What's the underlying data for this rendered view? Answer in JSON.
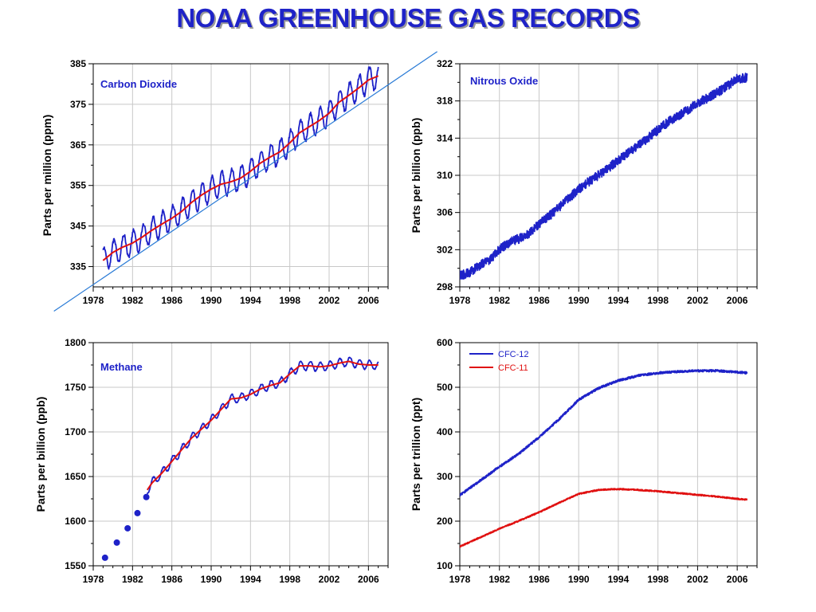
{
  "page": {
    "title": "NOAA GREENHOUSE GAS RECORDS"
  },
  "chart_data": [
    {
      "id": "co2",
      "type": "line",
      "title": "Carbon Dioxide",
      "xlabel": "",
      "ylabel": "Parts per million (ppm)",
      "xlim": [
        1978,
        2008
      ],
      "ylim": [
        330,
        385
      ],
      "xticks": [
        1978,
        1982,
        1986,
        1990,
        1994,
        1998,
        2002,
        2006
      ],
      "yticks": [
        335,
        345,
        355,
        365,
        375,
        385
      ],
      "grid": true,
      "legend": "none",
      "series": [
        {
          "kind": "monthly",
          "color": "#1e22c8",
          "seasonal_amplitude": 3,
          "x": [
            1979.0,
            1980.0,
            1981.0,
            1982.0,
            1983.0,
            1984.0,
            1985.0,
            1986.0,
            1987.0,
            1988.0,
            1989.0,
            1990.0,
            1991.0,
            1992.0,
            1993.0,
            1994.0,
            1995.0,
            1996.0,
            1997.0,
            1998.0,
            1999.0,
            2000.0,
            2001.0,
            2002.0,
            2003.0,
            2004.0,
            2005.0,
            2006.0,
            2007.0
          ],
          "y": [
            336.5,
            338.5,
            339.8,
            340.8,
            342.3,
            344.0,
            345.5,
            346.9,
            348.6,
            350.8,
            352.6,
            354.1,
            355.3,
            355.9,
            356.8,
            358.5,
            360.5,
            362.0,
            363.3,
            365.5,
            368.0,
            369.5,
            371.0,
            372.8,
            375.5,
            377.2,
            379.0,
            381.0,
            382.0
          ]
        },
        {
          "kind": "smooth",
          "color": "#e01010",
          "x": [
            1979.0,
            1980.0,
            1981.0,
            1982.0,
            1983.0,
            1984.0,
            1985.0,
            1986.0,
            1987.0,
            1988.0,
            1989.0,
            1990.0,
            1991.0,
            1992.0,
            1993.0,
            1994.0,
            1995.0,
            1996.0,
            1997.0,
            1998.0,
            1999.0,
            2000.0,
            2001.0,
            2002.0,
            2003.0,
            2004.0,
            2005.0,
            2006.0,
            2007.0
          ],
          "y": [
            336.5,
            338.5,
            339.8,
            340.8,
            342.3,
            344.0,
            345.5,
            346.9,
            348.6,
            350.8,
            352.6,
            354.1,
            355.3,
            355.9,
            356.8,
            358.5,
            360.5,
            362.0,
            363.3,
            365.5,
            368.0,
            369.5,
            371.0,
            372.8,
            375.5,
            377.2,
            379.0,
            381.0,
            382.0
          ]
        },
        {
          "kind": "trend",
          "color": "#2a7bd6",
          "x": [
            1974.0,
            2013.0
          ],
          "y": [
            324.0,
            388.0
          ]
        }
      ]
    },
    {
      "id": "n2o",
      "type": "line",
      "title": "Nitrous Oxide",
      "xlabel": "",
      "ylabel": "Parts per billion (ppb)",
      "xlim": [
        1978,
        2008
      ],
      "ylim": [
        298,
        322
      ],
      "xticks": [
        1978,
        1982,
        1986,
        1990,
        1994,
        1998,
        2002,
        2006
      ],
      "yticks": [
        298,
        302,
        306,
        310,
        314,
        318,
        322
      ],
      "grid": true,
      "legend": "none",
      "series": [
        {
          "kind": "noisy",
          "color": "#1e22c8",
          "noise": 0.5,
          "x": [
            1978.0,
            1979.0,
            1980.0,
            1981.0,
            1982.0,
            1983.0,
            1984.0,
            1985.0,
            1986.0,
            1987.0,
            1988.0,
            1989.0,
            1990.0,
            1991.0,
            1992.0,
            1993.0,
            1994.0,
            1995.0,
            1996.0,
            1997.0,
            1998.0,
            1999.0,
            2000.0,
            2001.0,
            2002.0,
            2003.0,
            2004.0,
            2005.0,
            2006.0,
            2007.0
          ],
          "y": [
            299.2,
            299.5,
            300.3,
            300.9,
            302.0,
            302.8,
            303.2,
            303.7,
            304.8,
            305.6,
            306.5,
            307.5,
            308.5,
            309.3,
            310.0,
            310.8,
            311.6,
            312.5,
            313.2,
            314.0,
            314.9,
            315.7,
            316.4,
            317.0,
            317.8,
            318.3,
            318.9,
            319.6,
            320.4,
            320.5
          ]
        }
      ]
    },
    {
      "id": "ch4",
      "type": "line",
      "title": "Methane",
      "xlabel": "",
      "ylabel": "Parts per billion (ppb)",
      "xlim": [
        1978,
        2008
      ],
      "ylim": [
        1550,
        1800
      ],
      "xticks": [
        1978,
        1982,
        1986,
        1990,
        1994,
        1998,
        2002,
        2006
      ],
      "yticks": [
        1550,
        1600,
        1650,
        1700,
        1750,
        1800
      ],
      "grid": true,
      "legend": "none",
      "series": [
        {
          "kind": "points",
          "color": "#1e22c8",
          "x": [
            1979.2,
            1980.4,
            1981.5,
            1982.5,
            1983.4
          ],
          "y": [
            1559,
            1576,
            1592,
            1609,
            1627
          ]
        },
        {
          "kind": "monthly",
          "color": "#1e22c8",
          "seasonal_amplitude": 5,
          "x": [
            1983.5,
            1984.0,
            1985.0,
            1986.0,
            1987.0,
            1988.0,
            1989.0,
            1990.0,
            1991.0,
            1992.0,
            1993.0,
            1994.0,
            1995.0,
            1996.0,
            1997.0,
            1998.0,
            1999.0,
            2000.0,
            2001.0,
            2002.0,
            2003.0,
            2004.0,
            2005.0,
            2006.0,
            2007.0
          ],
          "y": [
            1635,
            1643,
            1654,
            1667,
            1680,
            1693,
            1703,
            1713,
            1725,
            1737,
            1738,
            1742,
            1748,
            1752,
            1755,
            1765,
            1774,
            1774,
            1773,
            1774,
            1777,
            1779,
            1776,
            1775,
            1775
          ]
        },
        {
          "kind": "smooth",
          "color": "#e01010",
          "x": [
            1983.5,
            1984.0,
            1985.0,
            1986.0,
            1987.0,
            1988.0,
            1989.0,
            1990.0,
            1991.0,
            1992.0,
            1993.0,
            1994.0,
            1995.0,
            1996.0,
            1997.0,
            1998.0,
            1999.0,
            2000.0,
            2001.0,
            2002.0,
            2003.0,
            2004.0,
            2005.0,
            2006.0,
            2007.0
          ],
          "y": [
            1635,
            1643,
            1654,
            1667,
            1680,
            1693,
            1703,
            1713,
            1725,
            1737,
            1738,
            1742,
            1748,
            1752,
            1755,
            1765,
            1774,
            1774,
            1773,
            1774,
            1777,
            1779,
            1776,
            1775,
            1775
          ]
        }
      ]
    },
    {
      "id": "cfc",
      "type": "line",
      "title": "",
      "xlabel": "",
      "ylabel": "Parts per trillion (ppt)",
      "xlim": [
        1978,
        2008
      ],
      "ylim": [
        100,
        600
      ],
      "xticks": [
        1978,
        1982,
        1986,
        1990,
        1994,
        1998,
        2002,
        2006
      ],
      "yticks": [
        100,
        200,
        300,
        400,
        500,
        600
      ],
      "grid": true,
      "legend": "top-left",
      "series": [
        {
          "name": "CFC-12",
          "kind": "noisy",
          "color": "#1e22c8",
          "noise": 2.5,
          "x": [
            1978.0,
            1980.0,
            1982.0,
            1984.0,
            1986.0,
            1988.0,
            1990.0,
            1992.0,
            1994.0,
            1996.0,
            1998.0,
            2000.0,
            2002.0,
            2004.0,
            2006.0,
            2007.0
          ],
          "y": [
            258,
            290,
            322,
            352,
            388,
            428,
            472,
            498,
            515,
            526,
            532,
            535,
            537,
            537,
            534,
            532
          ]
        },
        {
          "name": "CFC-11",
          "kind": "noisy",
          "color": "#e01010",
          "noise": 1.5,
          "x": [
            1978.0,
            1980.0,
            1982.0,
            1984.0,
            1986.0,
            1988.0,
            1990.0,
            1992.0,
            1994.0,
            1996.0,
            1998.0,
            2000.0,
            2002.0,
            2004.0,
            2006.0,
            2007.0
          ],
          "y": [
            143,
            163,
            183,
            201,
            220,
            241,
            261,
            270,
            272,
            270,
            267,
            263,
            259,
            255,
            250,
            248
          ]
        }
      ]
    }
  ]
}
